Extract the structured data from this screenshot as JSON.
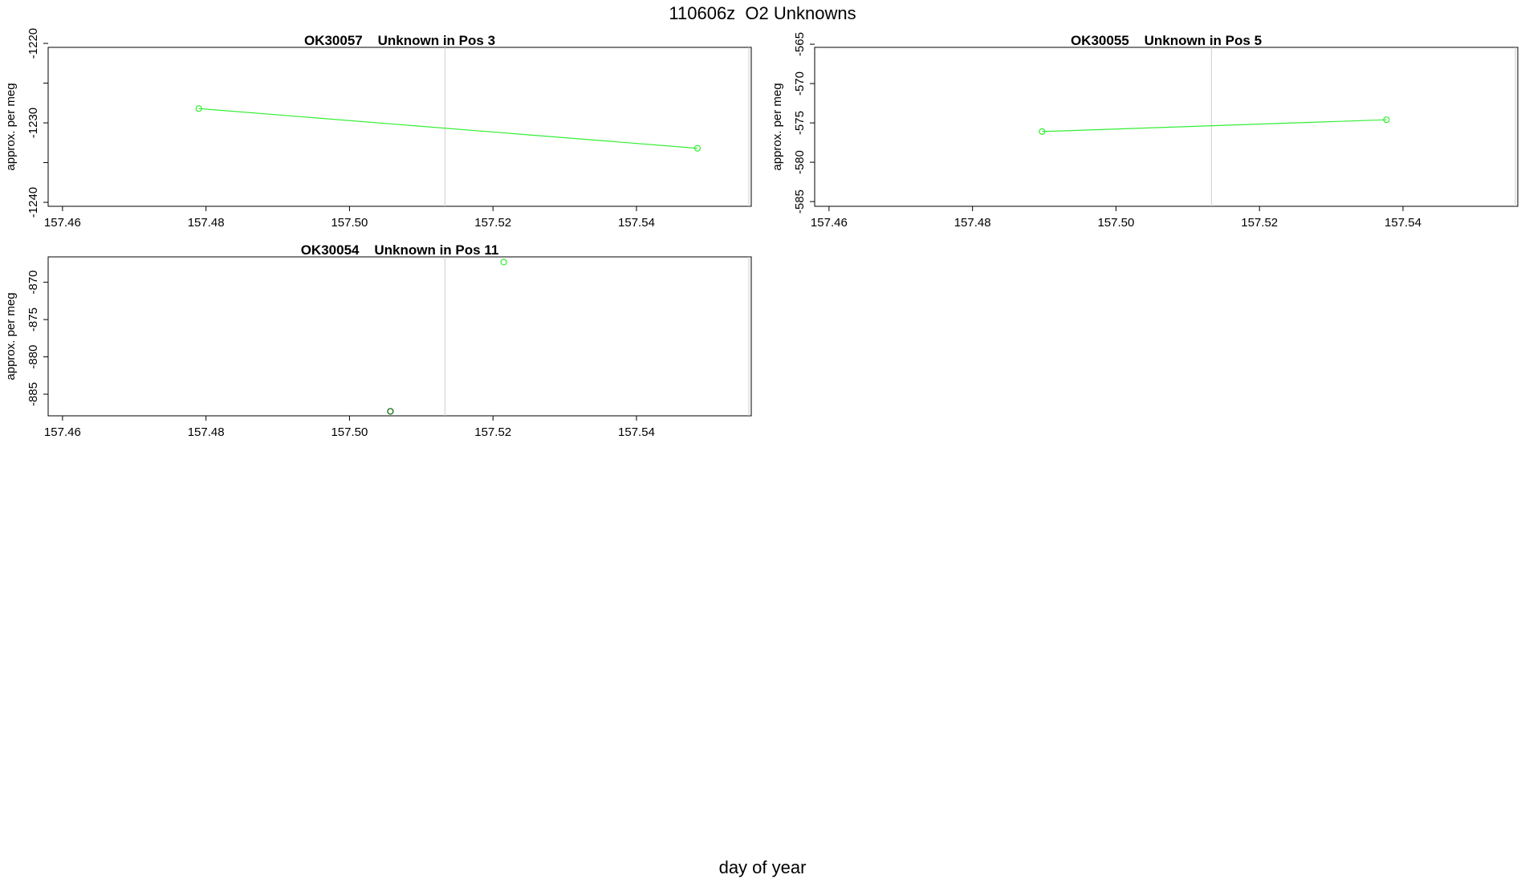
{
  "figure": {
    "title": "110606z  O2 Unknowns",
    "xlabel": "day of year"
  },
  "colors": {
    "line": "#33ee33",
    "point_dark": "#006600",
    "vline": "#cccccc",
    "axis": "#000000"
  },
  "chart_data": [
    {
      "type": "line",
      "title": "OK30057    Unknown in Pos 3",
      "ylabel": "approx. per meg",
      "xlim": [
        157.458,
        157.556
      ],
      "ylim": [
        -1240.5,
        -1220.5
      ],
      "xticks": [
        157.46,
        157.48,
        157.5,
        157.52,
        157.54
      ],
      "xtick_labels": [
        "157.46",
        "157.48",
        "157.50",
        "157.52",
        "157.54"
      ],
      "yticks": [
        -1220,
        -1225,
        -1230,
        -1235,
        -1240
      ],
      "ytick_labels": [
        "-1220",
        "",
        "-1230",
        "",
        "-1240"
      ],
      "vline_x": 157.5133,
      "series": [
        {
          "points": [
            {
              "x": 157.479,
              "y": -1228.2
            },
            {
              "x": 157.5485,
              "y": -1233.2
            }
          ],
          "connected": true,
          "point_style": [
            "light",
            "light"
          ]
        }
      ]
    },
    {
      "type": "line",
      "title": "OK30055    Unknown in Pos 5",
      "ylabel": "approx. per meg",
      "xlim": [
        157.458,
        157.556
      ],
      "ylim": [
        -585.6,
        -565.4
      ],
      "xticks": [
        157.46,
        157.48,
        157.5,
        157.52,
        157.54
      ],
      "xtick_labels": [
        "157.46",
        "157.48",
        "157.50",
        "157.52",
        "157.54"
      ],
      "yticks": [
        -565,
        -570,
        -575,
        -580,
        -585
      ],
      "ytick_labels": [
        "-565",
        "-570",
        "-575",
        "-580",
        "-585"
      ],
      "vline_x": 157.5133,
      "series": [
        {
          "points": [
            {
              "x": 157.4897,
              "y": -576.1
            },
            {
              "x": 157.5377,
              "y": -574.6
            }
          ],
          "connected": true,
          "point_style": [
            "light",
            "light"
          ]
        }
      ]
    },
    {
      "type": "scatter",
      "title": "OK30054    Unknown in Pos 11",
      "ylabel": "approx. per meg",
      "xlim": [
        157.458,
        157.556
      ],
      "ylim": [
        -887.9,
        -866.6
      ],
      "xticks": [
        157.46,
        157.48,
        157.5,
        157.52,
        157.54
      ],
      "xtick_labels": [
        "157.46",
        "157.48",
        "157.50",
        "157.52",
        "157.54"
      ],
      "yticks": [
        -870,
        -875,
        -880,
        -885
      ],
      "ytick_labels": [
        "-870",
        "-875",
        "-880",
        "-885"
      ],
      "vline_x": 157.5133,
      "series": [
        {
          "points": [
            {
              "x": 157.5057,
              "y": -887.3
            },
            {
              "x": 157.5215,
              "y": -867.3
            }
          ],
          "connected": false,
          "point_style": [
            "dark",
            "light"
          ]
        }
      ]
    }
  ]
}
